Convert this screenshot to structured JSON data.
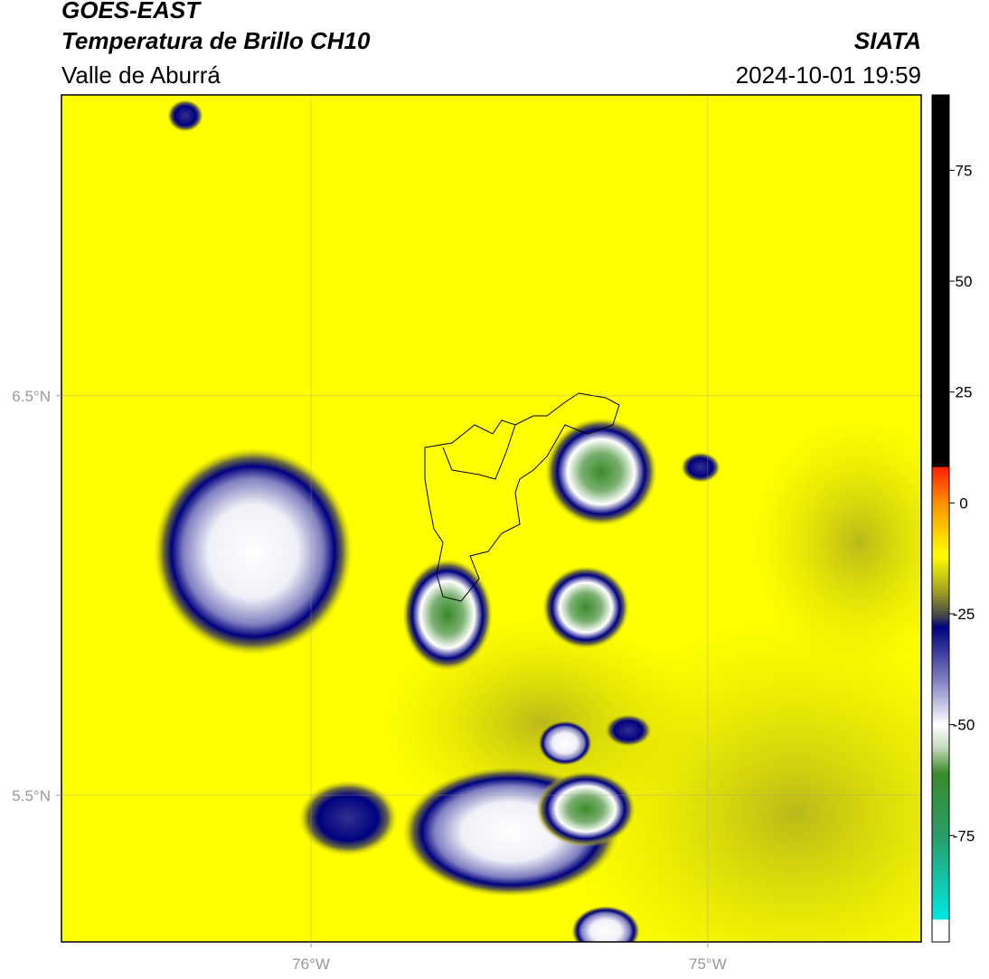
{
  "header": {
    "title": "GOES-EAST",
    "subtitle": "Temperatura de Brillo CH10",
    "region": "Valle de Aburrá",
    "source": "SIATA",
    "datetime": "2024-10-01 19:59"
  },
  "chart_data": {
    "type": "map",
    "xlim": [
      -76.629,
      -74.462
    ],
    "ylim": [
      5.133,
      7.253
    ],
    "xticks": [
      {
        "value": -76,
        "label": "76°W"
      },
      {
        "value": -75,
        "label": "75°W"
      }
    ],
    "yticks": [
      {
        "value": 6.5,
        "label": "6.5°N"
      },
      {
        "value": 5.5,
        "label": "5.5°N"
      }
    ],
    "grid": true,
    "colorbar": {
      "lim": [
        -99,
        92
      ],
      "ticks": [
        75,
        50,
        25,
        0,
        -25,
        -50,
        -75
      ],
      "colormap": [
        [
          -99,
          "#ffffff"
        ],
        [
          -94,
          "#ffffff"
        ],
        [
          -93.9,
          "#00e8e0"
        ],
        [
          -75,
          "#2a9d6a"
        ],
        [
          -61,
          "#3a8a2a"
        ],
        [
          -55,
          "#c8dcc0"
        ],
        [
          -50,
          "#ffffff"
        ],
        [
          -40,
          "#8080c0"
        ],
        [
          -28,
          "#000080"
        ],
        [
          -26,
          "#3a3a50"
        ],
        [
          -20,
          "#a0a020"
        ],
        [
          -12,
          "#ffff00"
        ],
        [
          -5,
          "#ffc000"
        ],
        [
          0,
          "#ff9000"
        ],
        [
          8,
          "#ff2000"
        ],
        [
          8.2,
          "#000000"
        ],
        [
          92,
          "#000000"
        ]
      ]
    }
  }
}
